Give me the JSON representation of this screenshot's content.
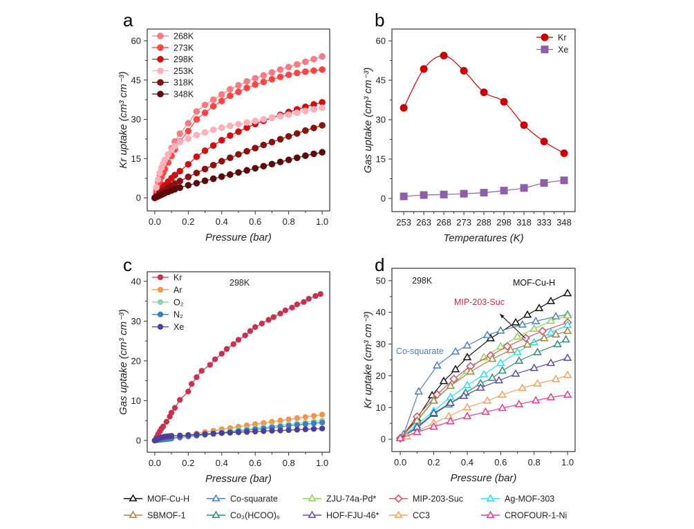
{
  "chart_data": [
    {
      "panel": "a",
      "type": "line",
      "xlabel": "Pressure (bar)",
      "ylabel": "Kr uptake (cm³ cm⁻³)",
      "xlim": [
        -0.045,
        1.045
      ],
      "ylim": [
        -5,
        64.5
      ],
      "xticks": [
        0.0,
        0.2,
        0.4,
        0.6,
        0.8,
        1.0
      ],
      "xtick_labels": [
        "0.0",
        "0.2",
        "0.4",
        "0.6",
        "0.8",
        "1.0"
      ],
      "yticks": [
        0,
        15,
        30,
        45,
        60
      ],
      "ytick_labels": [
        "0",
        "15",
        "30",
        "45",
        "60"
      ],
      "legend_position": "top-left",
      "x": [
        0,
        0.01,
        0.02,
        0.03,
        0.04,
        0.05,
        0.06,
        0.08,
        0.1,
        0.12,
        0.15,
        0.2,
        0.25,
        0.3,
        0.35,
        0.4,
        0.45,
        0.5,
        0.55,
        0.6,
        0.65,
        0.7,
        0.75,
        0.8,
        0.85,
        0.9,
        0.95,
        1.0
      ],
      "series": [
        {
          "name": "268K",
          "color": "#f77b84",
          "marker": "circle",
          "values": [
            0,
            3,
            6,
            8.5,
            10.5,
            12.5,
            14,
            16.5,
            19,
            21.5,
            24.5,
            28.5,
            33,
            35.5,
            37.5,
            39.5,
            41.5,
            43,
            44.5,
            45.7,
            46.8,
            47.9,
            49,
            50,
            51,
            52,
            53,
            54
          ]
        },
        {
          "name": "273K",
          "color": "#ff4444",
          "marker": "circle",
          "values": [
            0,
            2,
            4,
            6,
            8,
            9.5,
            11,
            13.5,
            16,
            18.5,
            21.5,
            25.5,
            30,
            32.5,
            35,
            37,
            39,
            40.5,
            42,
            43.3,
            44.3,
            45.3,
            46.2,
            47,
            47.7,
            48.2,
            48.6,
            49
          ]
        },
        {
          "name": "298K",
          "color": "#d01010",
          "marker": "circle",
          "values": [
            0,
            0.8,
            1.6,
            2.4,
            3.2,
            4,
            4.8,
            6.2,
            7.5,
            8.7,
            10.2,
            12.8,
            15.7,
            18,
            20,
            22,
            23.8,
            25.3,
            26.8,
            28.2,
            29.4,
            30.6,
            31.7,
            32.8,
            33.8,
            34.8,
            35.7,
            36.5
          ]
        },
        {
          "name": "253K",
          "color": "#ffb0b8",
          "marker": "circle",
          "values": [
            0,
            4,
            7,
            9.5,
            11.5,
            13,
            14.5,
            16.5,
            18.3,
            19.8,
            21.3,
            22.6,
            24,
            25,
            26,
            26.8,
            27.5,
            28.2,
            28.8,
            29.4,
            30,
            30.6,
            31.2,
            31.8,
            32.5,
            33.2,
            33.8,
            34.4
          ]
        },
        {
          "name": "318K",
          "color": "#8b1010",
          "marker": "circle",
          "values": [
            0,
            0.5,
            1,
            1.5,
            2,
            2.5,
            3,
            3.8,
            4.6,
            5.4,
            6.4,
            8,
            9.5,
            11,
            12.5,
            14,
            15.3,
            16.6,
            17.8,
            19,
            20.2,
            21.3,
            22.4,
            23.5,
            24.6,
            25.7,
            26.7,
            27.7
          ]
        },
        {
          "name": "348K",
          "color": "#5a0808",
          "marker": "circle",
          "values": [
            0,
            0.3,
            0.6,
            0.9,
            1.2,
            1.5,
            1.8,
            2.3,
            2.8,
            3.3,
            3.9,
            4.8,
            5.6,
            6.5,
            7.3,
            8.1,
            8.9,
            9.7,
            10.5,
            11.3,
            12.1,
            12.9,
            13.7,
            14.5,
            15.3,
            16.1,
            16.8,
            17.4
          ]
        }
      ]
    },
    {
      "panel": "b",
      "type": "line",
      "xlabel": "Temperatures (K)",
      "ylabel": "Gas uptake (cm³ cm⁻³)",
      "categories": [
        "253",
        "263",
        "268",
        "273",
        "288",
        "298",
        "318",
        "333",
        "348"
      ],
      "xlim": [
        -0.59,
        8.55
      ],
      "ylim": [
        -5,
        64.5
      ],
      "yticks": [
        0,
        15,
        30,
        45,
        60
      ],
      "ytick_labels": [
        "0",
        "15",
        "30",
        "45",
        "60"
      ],
      "legend_position": "top-right",
      "series": [
        {
          "name": "Kr",
          "color": "#cc0000",
          "marker": "circle",
          "smooth": true,
          "values": [
            34.5,
            49.3,
            54.4,
            48.6,
            40.4,
            36.8,
            27.9,
            21.7,
            17.2
          ]
        },
        {
          "name": "Xe",
          "color": "#8e5fa8",
          "marker": "square",
          "smooth": true,
          "values": [
            0.8,
            1.3,
            1.5,
            1.8,
            2.2,
            3.0,
            4.0,
            5.9,
            6.9
          ]
        }
      ]
    },
    {
      "panel": "c",
      "type": "line",
      "xlabel": "Pressure (bar)",
      "ylabel": "Gas uptake (cm³ cm⁻³)",
      "annotation": "298K",
      "xlim": [
        -0.045,
        1.045
      ],
      "ylim": [
        -2.96,
        42.4
      ],
      "xticks": [
        0.0,
        0.2,
        0.4,
        0.6,
        0.8,
        1.0
      ],
      "xtick_labels": [
        "0.0",
        "0.2",
        "0.4",
        "0.6",
        "0.8",
        "1.0"
      ],
      "yticks": [
        0,
        10,
        20,
        30,
        40
      ],
      "ytick_labels": [
        "0",
        "10",
        "20",
        "30",
        "40"
      ],
      "legend_position": "top-left",
      "series": [
        {
          "name": "Kr",
          "color": "#c8324e",
          "marker": "circle",
          "x": [
            0,
            0.01,
            0.02,
            0.03,
            0.04,
            0.05,
            0.07,
            0.09,
            0.1,
            0.12,
            0.15,
            0.2,
            0.22,
            0.25,
            0.28,
            0.33,
            0.36,
            0.4,
            0.43,
            0.47,
            0.5,
            0.54,
            0.57,
            0.6,
            0.64,
            0.68,
            0.71,
            0.75,
            0.78,
            0.82,
            0.85,
            0.89,
            0.92,
            0.96,
            0.99
          ],
          "values": [
            0,
            0.8,
            1.6,
            2.3,
            3,
            3.5,
            4.7,
            6,
            7,
            8.2,
            10.2,
            12.3,
            14.2,
            15.9,
            17.5,
            19,
            20.4,
            21.8,
            23,
            24.2,
            25.3,
            26.4,
            27.5,
            28.5,
            29.4,
            30.3,
            31,
            31.9,
            32.7,
            33.4,
            34.2,
            34.8,
            35.6,
            36.3,
            36.8
          ]
        },
        {
          "name": "Ar",
          "color": "#f7944a",
          "marker": "circle",
          "x": [
            0,
            0.01,
            0.02,
            0.03,
            0.04,
            0.05,
            0.06,
            0.07,
            0.08,
            0.09,
            0.1,
            0.15,
            0.2,
            0.25,
            0.3,
            0.35,
            0.4,
            0.45,
            0.5,
            0.55,
            0.6,
            0.65,
            0.7,
            0.75,
            0.8,
            0.85,
            0.9,
            0.95,
            1.0
          ],
          "values": [
            0,
            0.08,
            0.15,
            0.22,
            0.3,
            0.37,
            0.44,
            0.5,
            0.57,
            0.63,
            0.7,
            1.0,
            1.4,
            1.75,
            2.1,
            2.45,
            2.8,
            3.1,
            3.45,
            3.8,
            4.1,
            4.4,
            4.7,
            5.0,
            5.3,
            5.6,
            5.9,
            6.2,
            6.5
          ]
        },
        {
          "name": "O₂",
          "color": "#8fd4a8",
          "marker": "circle",
          "x": [
            0,
            0.01,
            0.02,
            0.03,
            0.04,
            0.05,
            0.06,
            0.07,
            0.08,
            0.09,
            0.1,
            0.15,
            0.2,
            0.25,
            0.3,
            0.35,
            0.4,
            0.45,
            0.5,
            0.55,
            0.6,
            0.65,
            0.7,
            0.75,
            0.8,
            0.85,
            0.9,
            0.95,
            1.0
          ],
          "values": [
            0,
            0.06,
            0.12,
            0.18,
            0.24,
            0.3,
            0.36,
            0.42,
            0.48,
            0.54,
            0.6,
            0.85,
            1.1,
            1.35,
            1.6,
            1.85,
            2.1,
            2.35,
            2.6,
            2.85,
            3.1,
            3.35,
            3.6,
            3.85,
            4.1,
            4.3,
            4.55,
            4.8,
            5.0
          ]
        },
        {
          "name": "N₂",
          "color": "#3f7fc0",
          "marker": "circle",
          "x": [
            0,
            0.01,
            0.02,
            0.03,
            0.04,
            0.05,
            0.06,
            0.07,
            0.08,
            0.09,
            0.1,
            0.15,
            0.2,
            0.25,
            0.3,
            0.35,
            0.4,
            0.45,
            0.5,
            0.55,
            0.6,
            0.65,
            0.7,
            0.75,
            0.8,
            0.85,
            0.9,
            0.95,
            1.0
          ],
          "values": [
            0,
            0.05,
            0.1,
            0.15,
            0.2,
            0.25,
            0.3,
            0.35,
            0.4,
            0.45,
            0.5,
            0.75,
            1.0,
            1.2,
            1.45,
            1.65,
            1.9,
            2.1,
            2.35,
            2.55,
            2.8,
            3.0,
            3.25,
            3.45,
            3.7,
            3.9,
            4.1,
            4.3,
            4.5
          ]
        },
        {
          "name": "Xe",
          "color": "#4b3f9c",
          "marker": "circle",
          "x": [
            0,
            0.01,
            0.02,
            0.03,
            0.04,
            0.05,
            0.06,
            0.07,
            0.08,
            0.09,
            0.1,
            0.15,
            0.2,
            0.25,
            0.3,
            0.35,
            0.4,
            0.45,
            0.5,
            0.55,
            0.6,
            0.65,
            0.7,
            0.75,
            0.8,
            0.85,
            0.9,
            0.95,
            1.0
          ],
          "values": [
            0,
            0.2,
            0.4,
            0.6,
            0.75,
            0.85,
            0.95,
            1.0,
            1.05,
            1.1,
            1.15,
            1.25,
            1.35,
            1.5,
            1.6,
            1.75,
            1.85,
            1.95,
            2.05,
            2.15,
            2.25,
            2.35,
            2.45,
            2.5,
            2.6,
            2.7,
            2.8,
            2.9,
            3.0
          ]
        }
      ]
    },
    {
      "panel": "d",
      "type": "line",
      "xlabel": "Pressure (bar)",
      "ylabel": "Kr uptake (cm³ cm⁻³)",
      "annotation": "298K",
      "labels": [
        {
          "text": "MOF-Cu-H",
          "color": "#111111"
        },
        {
          "text": "MIP-203-Suc",
          "color": "#c8324e"
        },
        {
          "text": "Co-squarate",
          "color": "#4a7fc1"
        }
      ],
      "arrow": {
        "from": [
          0.748,
          31.8
        ],
        "to": [
          0.595,
          39.5
        ]
      },
      "xlim": [
        -0.05,
        1.045
      ],
      "ylim": [
        -3.9,
        53.9
      ],
      "xticks": [
        0.0,
        0.2,
        0.4,
        0.6,
        0.8,
        1.0
      ],
      "xtick_labels": [
        "0.0",
        "0.2",
        "0.4",
        "0.6",
        "0.8",
        "1.0"
      ],
      "yticks": [
        0,
        10,
        20,
        30,
        40,
        50
      ],
      "ytick_labels": [
        "0",
        "10",
        "20",
        "30",
        "40",
        "50"
      ],
      "legend_position": "bottom (below figure)",
      "series": [
        {
          "name": "MOF-Cu-H",
          "color": "#111111",
          "marker": "triangle",
          "x": [
            0,
            0.1,
            0.19,
            0.26,
            0.33,
            0.4,
            0.54,
            0.69,
            0.76,
            0.83,
            0.9,
            1.0
          ],
          "values": [
            0.3,
            6.5,
            13.8,
            18.3,
            22,
            25.8,
            31.8,
            36.8,
            39.2,
            41.3,
            43.5,
            46
          ]
        },
        {
          "name": "Co-squarate",
          "color": "#4a7fc1",
          "marker": "triangle",
          "x": [
            0,
            0.02,
            0.11,
            0.22,
            0.33,
            0.4,
            0.52,
            0.6,
            0.73,
            0.81,
            0.93,
            1.0
          ],
          "values": [
            0.3,
            1.5,
            15,
            23.2,
            27.6,
            29.5,
            32.8,
            34.2,
            36.1,
            37.2,
            38.7,
            39.3
          ]
        },
        {
          "name": "ZJU-74a-Pd*",
          "color": "#8fd14f",
          "marker": "triangle",
          "x": [
            0,
            0.1,
            0.2,
            0.3,
            0.4,
            0.5,
            0.6,
            0.7,
            0.8,
            0.9,
            1.0
          ],
          "values": [
            0.3,
            6,
            12.3,
            16.8,
            21.5,
            25.8,
            29.2,
            32.3,
            34.8,
            37.3,
            39
          ]
        },
        {
          "name": "MIP-203-Suc",
          "color": "#d9546a",
          "marker": "diamond",
          "x": [
            0,
            0.1,
            0.22,
            0.32,
            0.42,
            0.54,
            0.64,
            0.75,
            0.85,
            1.0
          ],
          "values": [
            0.3,
            7.1,
            14.1,
            19,
            23,
            26.4,
            29.3,
            31.9,
            34.1,
            36.8
          ]
        },
        {
          "name": "Ag-MOF-303",
          "color": "#22e0f0",
          "marker": "triangle",
          "x": [
            0,
            0.1,
            0.2,
            0.3,
            0.4,
            0.5,
            0.6,
            0.7,
            0.8,
            0.9,
            1.0
          ],
          "values": [
            0.3,
            4.5,
            8.9,
            13.2,
            17,
            20.4,
            24,
            27.4,
            30.5,
            33.6,
            36
          ]
        },
        {
          "name": "SBMOF-1",
          "color": "#a08546",
          "marker": "triangle",
          "x": [
            0,
            0.1,
            0.2,
            0.3,
            0.42,
            0.55,
            0.66,
            0.76,
            0.86,
            0.93,
            1.0
          ],
          "values": [
            0.3,
            5.8,
            12.1,
            16.8,
            21.3,
            25.3,
            28.1,
            29.8,
            31.8,
            33,
            34.1
          ]
        },
        {
          "name": "Co₃(HCOO)₆",
          "color": "#2e8b7a",
          "marker": "triangle",
          "x": [
            0,
            0.1,
            0.2,
            0.29,
            0.39,
            0.48,
            0.55,
            0.61,
            0.71,
            0.82,
            0.94,
            0.99
          ],
          "values": [
            0.3,
            3.5,
            7.9,
            10.9,
            14.6,
            17.6,
            19.3,
            21.6,
            24.7,
            27.4,
            29.9,
            31.4
          ]
        },
        {
          "name": "HOF-FJU-46*",
          "color": "#5b4aa8",
          "marker": "triangle",
          "x": [
            0,
            0.1,
            0.2,
            0.3,
            0.38,
            0.48,
            0.59,
            0.69,
            0.8,
            0.9,
            1.0
          ],
          "values": [
            0.3,
            3.8,
            8.2,
            11.4,
            13.6,
            16.2,
            18.5,
            20.6,
            22.4,
            24,
            25.6
          ]
        },
        {
          "name": "CC3",
          "color": "#f5a060",
          "marker": "triangle",
          "x": [
            0,
            0.04,
            0.2,
            0.29,
            0.4,
            0.52,
            0.61,
            0.73,
            0.82,
            0.93,
            1.0
          ],
          "values": [
            0.3,
            0.8,
            5.1,
            7.2,
            10,
            12.1,
            14,
            16.1,
            17.5,
            18.9,
            20.2
          ]
        },
        {
          "name": "CROFOUR-1-Ni",
          "color": "#f0368a",
          "marker": "triangle",
          "x": [
            0,
            0.1,
            0.2,
            0.3,
            0.4,
            0.51,
            0.61,
            0.71,
            0.81,
            0.9,
            1.0
          ],
          "values": [
            0.3,
            2.2,
            3.9,
            5.6,
            7.2,
            8.6,
            9.8,
            11,
            12.2,
            13.2,
            14
          ]
        }
      ]
    }
  ],
  "panel_labels": [
    "a",
    "b",
    "c",
    "d"
  ]
}
